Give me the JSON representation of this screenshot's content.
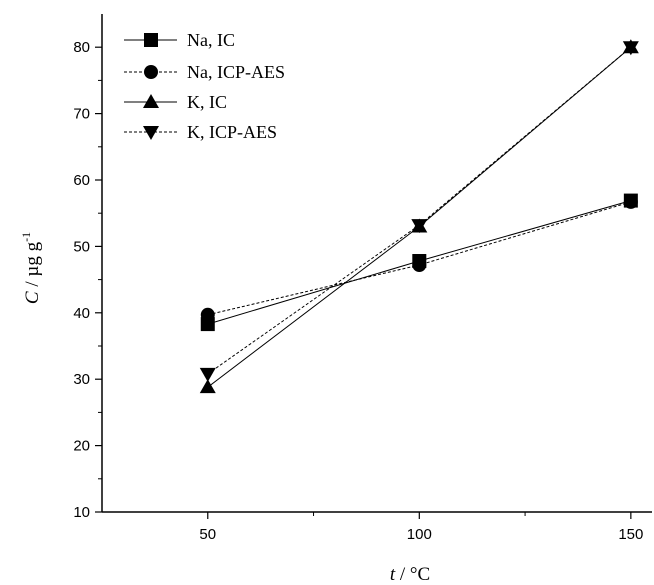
{
  "chart_data": {
    "type": "line",
    "x": [
      50,
      100,
      150
    ],
    "xlim": [
      25,
      155
    ],
    "ylim": [
      10,
      85
    ],
    "xticks_major": [
      50,
      100,
      150
    ],
    "yticks_major": [
      10,
      20,
      30,
      40,
      50,
      60,
      70,
      80
    ],
    "xlabel": {
      "var": "t",
      "unit": " / °C"
    },
    "ylabel": {
      "var": "C",
      "unit": " / µg g",
      "sup": "-1"
    },
    "grid": false,
    "legend_position": "top-left",
    "series": [
      {
        "name": "Na, IC",
        "values": [
          38.3,
          47.8,
          56.9
        ],
        "marker": "square",
        "line": "solid"
      },
      {
        "name": "Na, ICP-AES",
        "values": [
          39.7,
          47.2,
          56.7
        ],
        "marker": "circle",
        "line": "dashed"
      },
      {
        "name": "K, IC",
        "values": [
          28.8,
          53.0,
          80.0
        ],
        "marker": "triangle-up",
        "line": "solid"
      },
      {
        "name": "K, ICP-AES",
        "values": [
          30.8,
          53.2,
          80.0
        ],
        "marker": "triangle-down",
        "line": "dashed"
      }
    ]
  }
}
